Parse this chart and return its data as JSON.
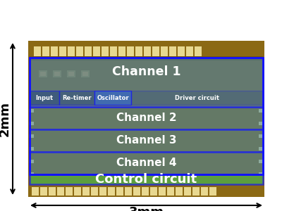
{
  "fig_width": 4.0,
  "fig_height": 3.0,
  "dpi": 100,
  "bg_color": "#ffffff",
  "pcb_brown": "#8B6914",
  "pcb_dark": "#6B4F10",
  "pad_color": "#E8D890",
  "chip_inner": "#7A5C12",
  "channel1": {
    "label": "Channel 1",
    "fs": 12.5,
    "color": "#4488BB",
    "alpha": 0.55
  },
  "channel2": {
    "label": "Channel 2",
    "fs": 11,
    "color": "#4488AA",
    "alpha": 0.55
  },
  "channel3": {
    "label": "Channel 3",
    "fs": 11,
    "color": "#4488AA",
    "alpha": 0.55
  },
  "channel4": {
    "label": "Channel 4",
    "fs": 11,
    "color": "#4488AA",
    "alpha": 0.55
  },
  "control": {
    "label": "Control circuit",
    "fs": 13,
    "color": "#44BB55",
    "alpha": 0.65
  },
  "sub_labels": [
    "Input",
    "Re-timer",
    "Oscillator",
    "Driver circuit"
  ],
  "sub_label_fs": 6.0,
  "blue_border": "#1111FF",
  "white": "#FFFFFF",
  "black": "#000000",
  "arrow_fs": 13
}
